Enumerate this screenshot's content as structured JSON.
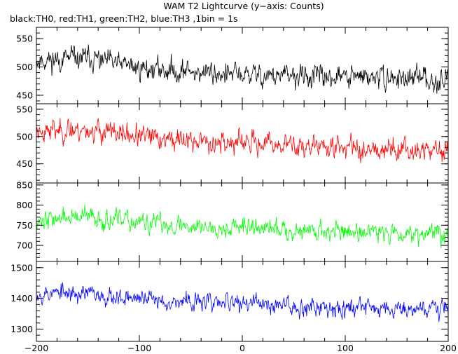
{
  "chart_data": {
    "type": "line",
    "title": "WAM T2 Lightcurve (y−axis: Counts)",
    "subtitle": "black:TH0, red:TH1, green:TH2, blue:TH3 ,1bin = 1s",
    "xlabel": "",
    "ylabel": "",
    "xlim": [
      -200,
      200
    ],
    "x_ticks": [
      -200,
      -100,
      0,
      100,
      200
    ],
    "x_tick_labels": [
      "−200",
      "−100",
      "0",
      "100",
      "200"
    ],
    "x_step": 0.5,
    "grid": false,
    "legend": "none",
    "panels": [
      {
        "name": "TH0",
        "color": "#000000",
        "ylim": [
          435,
          570
        ],
        "y_ticks": [
          450,
          500,
          550
        ],
        "y_tick_labels": [
          "450",
          "500",
          "550"
        ],
        "trend": [
          [
            -200,
            512
          ],
          [
            -150,
            515
          ],
          [
            -100,
            498
          ],
          [
            -50,
            492
          ],
          [
            0,
            486
          ],
          [
            50,
            483
          ],
          [
            100,
            482
          ],
          [
            150,
            480
          ],
          [
            200,
            478
          ]
        ],
        "noise": 22,
        "seed": 11
      },
      {
        "name": "TH1",
        "color": "#ff0000",
        "ylim": [
          415,
          560
        ],
        "y_ticks": [
          450,
          500,
          550
        ],
        "y_tick_labels": [
          "450",
          "500",
          "550"
        ],
        "trend": [
          [
            -200,
            512
          ],
          [
            -150,
            512
          ],
          [
            -100,
            500
          ],
          [
            -50,
            492
          ],
          [
            0,
            488
          ],
          [
            50,
            484
          ],
          [
            100,
            480
          ],
          [
            150,
            478
          ],
          [
            200,
            474
          ]
        ],
        "noise": 22,
        "seed": 23
      },
      {
        "name": "TH2",
        "color": "#00ff00",
        "ylim": [
          660,
          855
        ],
        "y_ticks": [
          700,
          750,
          800,
          850
        ],
        "y_tick_labels": [
          "700",
          "750",
          "800",
          "850"
        ],
        "trend": [
          [
            -200,
            765
          ],
          [
            -150,
            770
          ],
          [
            -100,
            755
          ],
          [
            -50,
            748
          ],
          [
            0,
            745
          ],
          [
            50,
            738
          ],
          [
            100,
            735
          ],
          [
            150,
            732
          ],
          [
            200,
            730
          ]
        ],
        "noise": 26,
        "seed": 37
      },
      {
        "name": "TH3",
        "color": "#0000ff",
        "ylim": [
          1260,
          1520
        ],
        "y_ticks": [
          1300,
          1400,
          1500
        ],
        "y_tick_labels": [
          "1300",
          "1400",
          "1500"
        ],
        "trend": [
          [
            -200,
            1418
          ],
          [
            -150,
            1415
          ],
          [
            -100,
            1398
          ],
          [
            -50,
            1388
          ],
          [
            0,
            1385
          ],
          [
            50,
            1375
          ],
          [
            100,
            1372
          ],
          [
            150,
            1370
          ],
          [
            200,
            1366
          ]
        ],
        "noise": 32,
        "seed": 53
      }
    ]
  }
}
